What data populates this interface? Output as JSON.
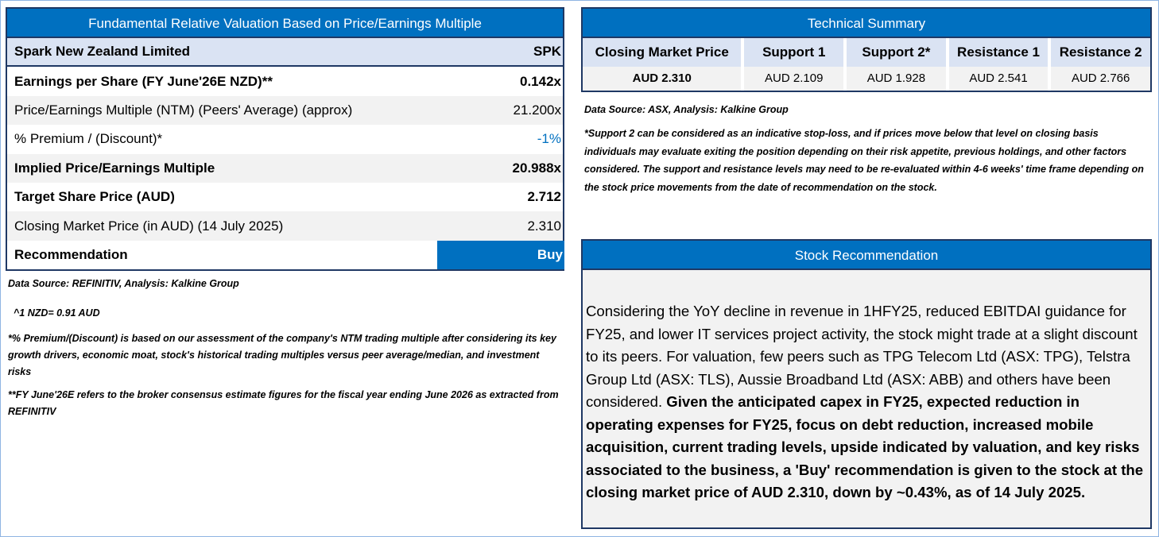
{
  "valuation": {
    "title": "Fundamental Relative Valuation Based on Price/Earnings Multiple",
    "company": "Spark New Zealand Limited",
    "ticker": "SPK",
    "rows": [
      {
        "label": "Earnings per Share (FY June'26E NZD)**",
        "value": "0.142x"
      },
      {
        "label": "Price/Earnings Multiple (NTM)  (Peers' Average) (approx)",
        "value": "21.200x"
      },
      {
        "label": "% Premium / (Discount)*",
        "value": "-1%"
      },
      {
        "label": "Implied Price/Earnings Multiple",
        "value": "20.988x"
      },
      {
        "label": "Target Share Price (AUD)",
        "value": "2.712"
      },
      {
        "label": "Closing Market Price (in AUD) (14 July 2025)",
        "value": "2.310"
      },
      {
        "label": "Recommendation",
        "value": "Buy"
      }
    ],
    "source": "Data Source: REFINITIV, Analysis: Kalkine Group",
    "fx": "^1 NZD= 0.91 AUD",
    "note1": "*% Premium/(Discount) is based on our assessment of the company's NTM trading multiple after considering its key growth drivers, economic moat, stock's historical trading multiples versus peer average/median, and investment risks",
    "note2": "**FY June'26E refers to the broker consensus estimate figures for the fiscal year ending June 2026  as extracted from REFINITIV"
  },
  "technical": {
    "title": "Technical Summary",
    "columns": [
      {
        "header": "Closing Market Price",
        "value": "AUD 2.310"
      },
      {
        "header": "Support 1",
        "value": "AUD 2.109"
      },
      {
        "header": "Support 2*",
        "value": "AUD 1.928"
      },
      {
        "header": "Resistance 1",
        "value": "AUD 2.541"
      },
      {
        "header": "Resistance 2",
        "value": "AUD 2.766"
      }
    ],
    "source": "Data Source: ASX, Analysis: Kalkine Group",
    "note": "*Support 2 can be considered as an indicative stop-loss, and if prices move below that level on closing basis individuals may evaluate exiting the position depending on their risk appetite, previous holdings, and other factors considered. The support and resistance levels may need to be re-evaluated within 4-6 weeks' time frame depending on the stock price movements from the date of recommendation on the stock."
  },
  "recommendation": {
    "title": "Stock Recommendation",
    "text_regular": "Considering the YoY decline in revenue in 1HFY25, reduced EBITDAI guidance for FY25, and lower IT services project activity, the stock might trade at a slight discount to its peers. For valuation, few peers such as TPG Telecom Ltd (ASX: TPG), Telstra Group Ltd (ASX: TLS), Aussie Broadband Ltd (ASX: ABB) and others have been considered. ",
    "text_bold": "Given the anticipated capex in FY25, expected reduction in operating expenses for FY25, focus on debt reduction, increased mobile acquisition, current trading levels, upside indicated by valuation, and key risks associated to the business, a 'Buy' recommendation is given to the stock at the closing market price of AUD 2.310, down by ~0.43%, as of 14 July 2025."
  }
}
